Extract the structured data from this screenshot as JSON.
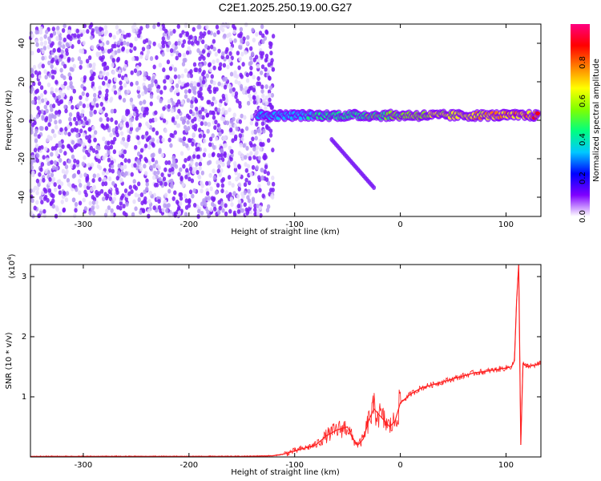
{
  "title": "C2E1.2025.250.19.00.G27",
  "chart_data": [
    {
      "type": "heatmap",
      "xlabel": "Height of straight line (km)",
      "ylabel": "Frequency (Hz)",
      "xlim": [
        -350,
        133
      ],
      "ylim": [
        -50,
        50
      ],
      "xticks": [
        -300,
        -200,
        -100,
        0,
        100
      ],
      "yticks": [
        -40,
        -20,
        0,
        20,
        40
      ],
      "colorbar": {
        "label": "Normalized spectral amplitude",
        "range": [
          0,
          1
        ],
        "ticks": [
          "0.0",
          "0.2",
          "0.4",
          "0.6",
          "0.8"
        ],
        "colormap": [
          "#ffffff",
          "#7f00ff",
          "#0000ff",
          "#00c8ff",
          "#00ff80",
          "#80ff00",
          "#ffff00",
          "#ff8000",
          "#ff0000",
          "#ff0080"
        ]
      },
      "regions": [
        {
          "desc": "broadband noise",
          "x": [
            -350,
            -120
          ],
          "y": [
            -50,
            50
          ],
          "amplitude": 0.15
        },
        {
          "desc": "ridge",
          "x": [
            -135,
            130
          ],
          "y": [
            0,
            5
          ],
          "amplitude": [
            0.3,
            0.9
          ]
        },
        {
          "desc": "descending branch",
          "x": [
            -65,
            -25
          ],
          "y": [
            -10,
            -35
          ],
          "amplitude": 0.2
        }
      ]
    },
    {
      "type": "line",
      "xlabel": "Height of straight line (km)",
      "ylabel": "SNR (10 * v/v)",
      "yscale_label": "(x10",
      "yscale_exp": "4",
      "xlim": [
        -350,
        133
      ],
      "ylim": [
        0,
        3.2
      ],
      "xticks": [
        -300,
        -200,
        -100,
        0,
        100
      ],
      "yticks": [
        1,
        2,
        3
      ],
      "series": [
        {
          "color": "#ff2020",
          "x": [
            -350,
            -300,
            -250,
            -200,
            -150,
            -120,
            -110,
            -100,
            -90,
            -80,
            -70,
            -60,
            -50,
            -45,
            -40,
            -35,
            -30,
            -25,
            -20,
            -15,
            -10,
            -5,
            0,
            10,
            20,
            30,
            40,
            50,
            60,
            70,
            80,
            90,
            100,
            105,
            108,
            110,
            112,
            114,
            116,
            120,
            125,
            133
          ],
          "y": [
            0.01,
            0.01,
            0.01,
            0.01,
            0.01,
            0.02,
            0.05,
            0.1,
            0.15,
            0.2,
            0.35,
            0.45,
            0.5,
            0.3,
            0.2,
            0.3,
            0.6,
            0.8,
            0.7,
            0.6,
            0.5,
            0.6,
            0.9,
            1.05,
            1.15,
            1.2,
            1.25,
            1.3,
            1.35,
            1.4,
            1.42,
            1.45,
            1.48,
            1.5,
            1.6,
            2.6,
            3.2,
            0.2,
            1.55,
            1.5,
            1.52,
            1.55
          ]
        }
      ]
    }
  ]
}
